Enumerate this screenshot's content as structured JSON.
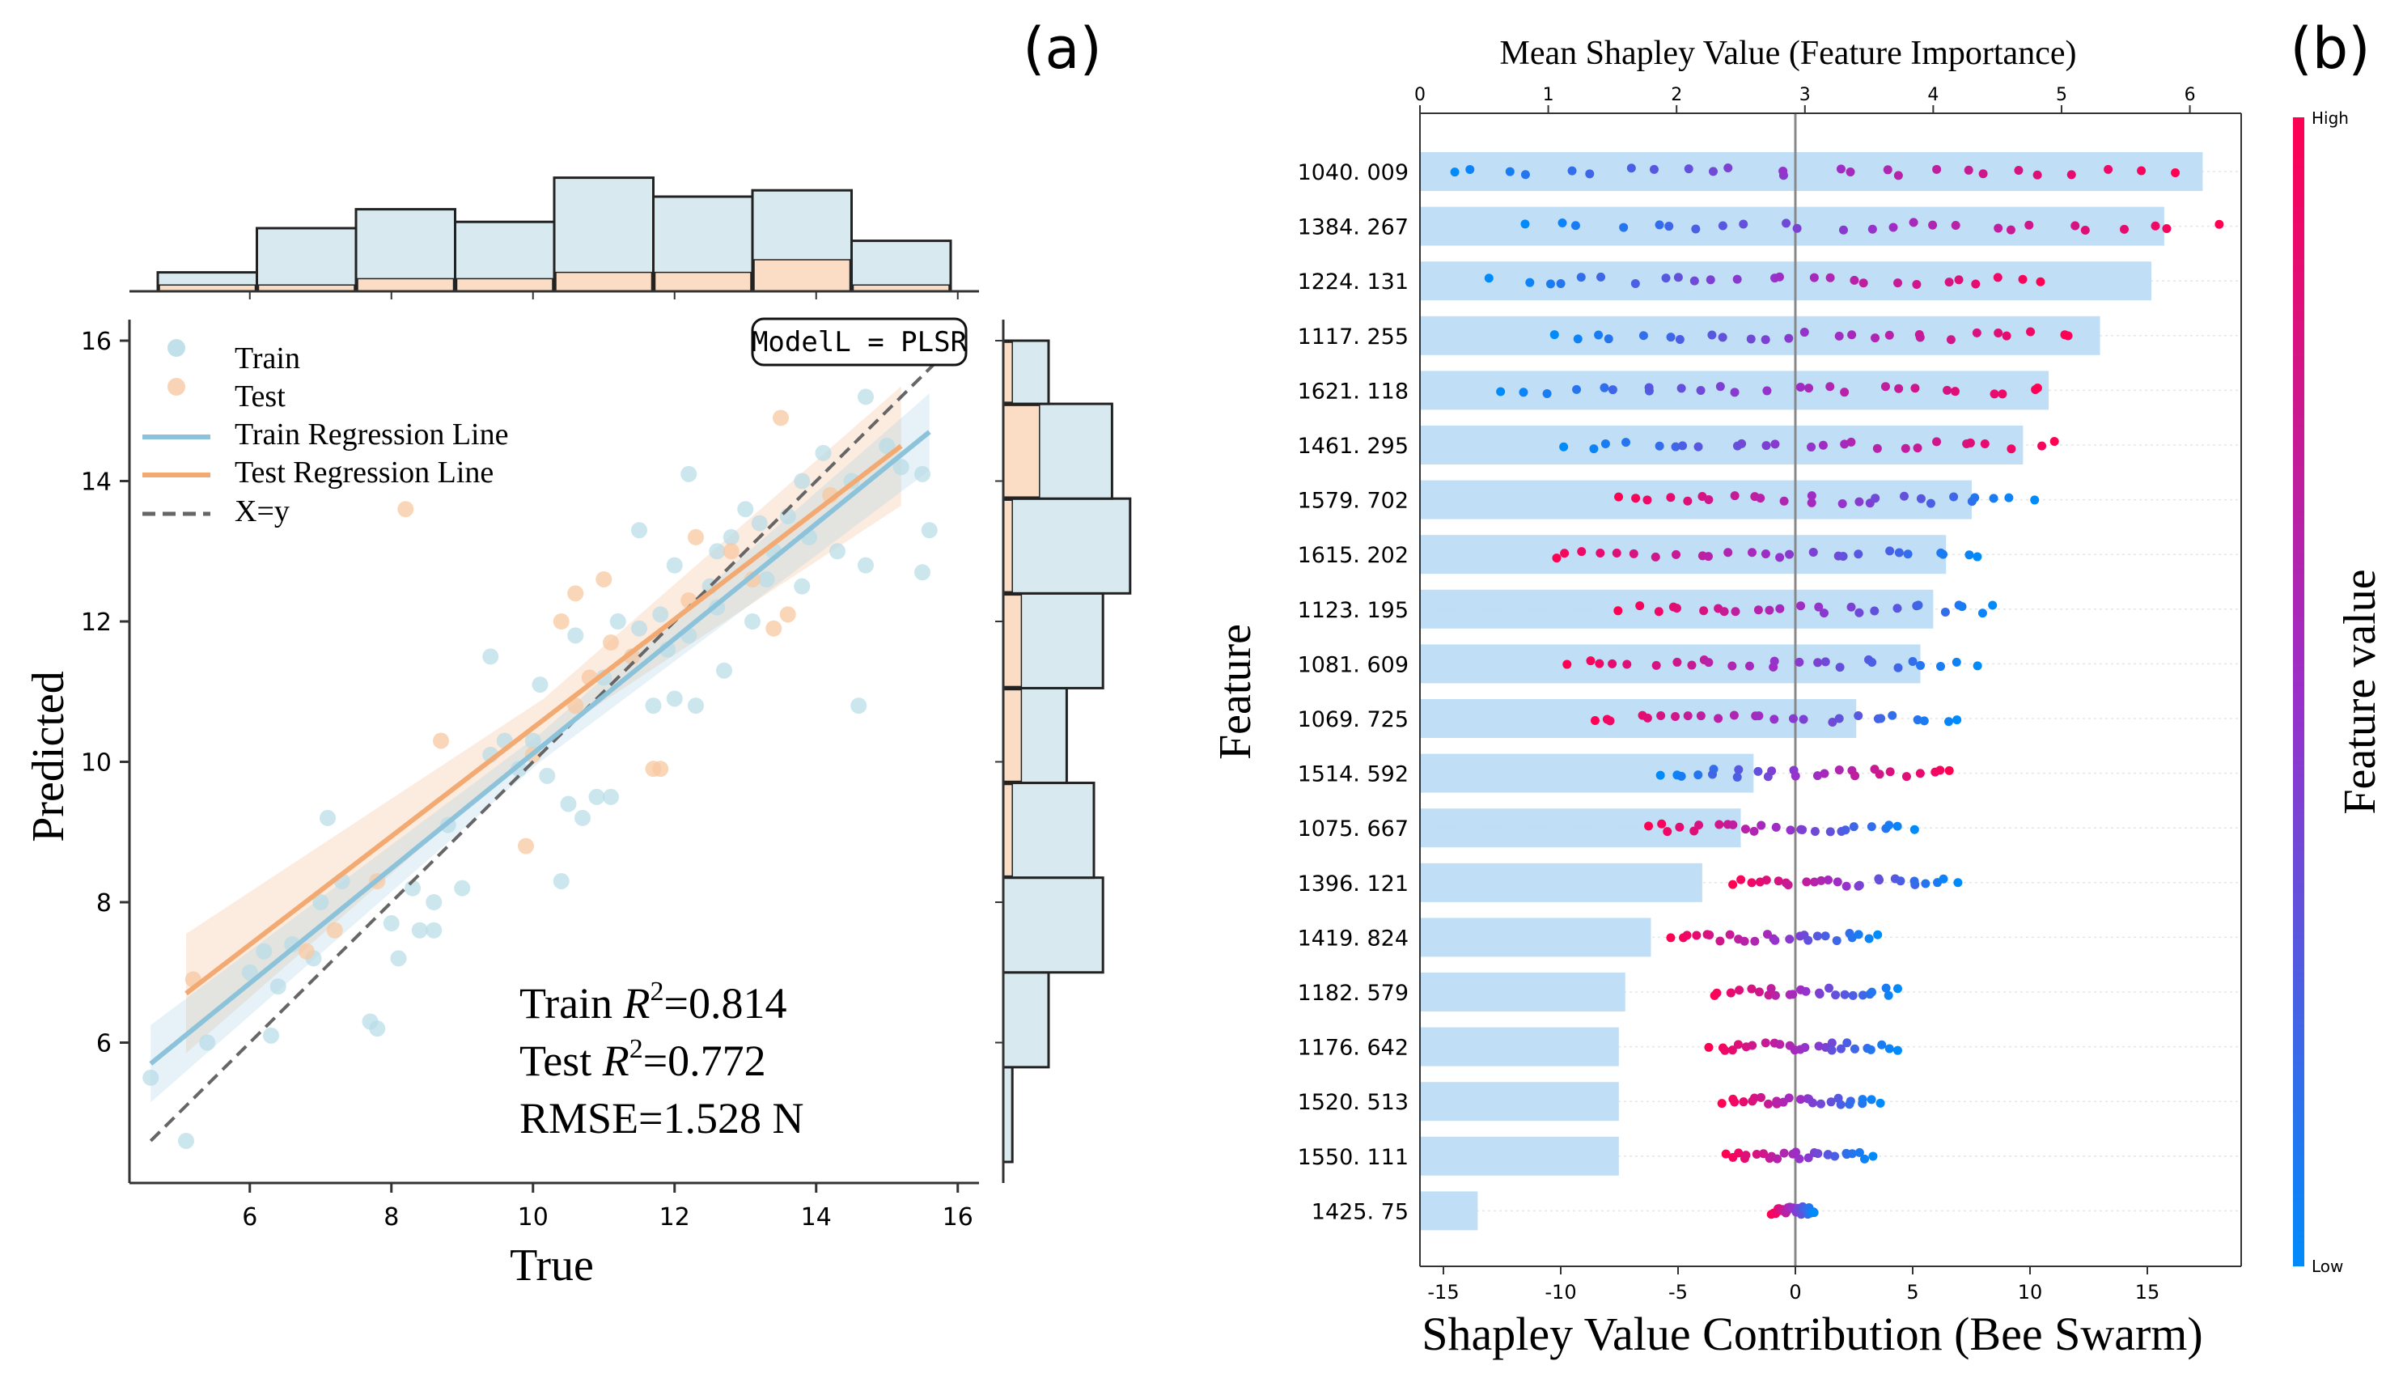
{
  "panel_a_label": "(a)",
  "panel_b_label": "(b)",
  "chart_data": [
    {
      "type": "scatter",
      "title": "",
      "xlabel": "True",
      "ylabel": "Predicted",
      "xlim": [
        4.3,
        16.3
      ],
      "ylim": [
        4.0,
        16.3
      ],
      "xticks": [
        6,
        8,
        10,
        12,
        14,
        16
      ],
      "yticks": [
        6,
        8,
        10,
        12,
        14,
        16
      ],
      "model_label": "ModelL = PLSR",
      "legend": [
        "Train",
        "Test",
        "Train Regression Line",
        "Test Regression Line",
        "X=y"
      ],
      "metrics": {
        "train_prefix": "Train ",
        "train_value": "=0.814",
        "test_prefix": "Test ",
        "test_value": "=0.772",
        "r_symbol": "R",
        "r_sup": "2",
        "rmse": "RMSE=1.528 N"
      },
      "colors": {
        "train": "#a9d3e2",
        "test": "#f7c49d",
        "train_line": "#8cc3da",
        "test_line": "#f3aa72",
        "diag": "#666666",
        "hist_train": "#d8eaf0",
        "hist_test": "#fbdcc4"
      },
      "train_line": {
        "x": [
          4.6,
          15.6
        ],
        "y": [
          5.7,
          14.7
        ]
      },
      "test_line": {
        "x": [
          5.1,
          15.2
        ],
        "y": [
          6.7,
          14.5
        ]
      },
      "diag_line": {
        "x": [
          4.6,
          15.7
        ],
        "y": [
          4.6,
          15.7
        ]
      },
      "series": [
        {
          "name": "Train",
          "points": [
            [
              4.6,
              5.5
            ],
            [
              5.1,
              4.6
            ],
            [
              5.4,
              6.0
            ],
            [
              6.3,
              6.1
            ],
            [
              6.0,
              7.0
            ],
            [
              6.2,
              7.3
            ],
            [
              6.4,
              6.8
            ],
            [
              6.6,
              7.4
            ],
            [
              6.9,
              7.2
            ],
            [
              7.0,
              8.0
            ],
            [
              7.3,
              8.3
            ],
            [
              7.1,
              9.2
            ],
            [
              7.7,
              6.3
            ],
            [
              7.8,
              6.2
            ],
            [
              8.0,
              7.7
            ],
            [
              8.1,
              7.2
            ],
            [
              8.4,
              7.6
            ],
            [
              8.6,
              7.6
            ],
            [
              8.6,
              8.0
            ],
            [
              8.3,
              8.2
            ],
            [
              9.0,
              8.2
            ],
            [
              8.8,
              9.1
            ],
            [
              9.4,
              10.1
            ],
            [
              9.6,
              10.3
            ],
            [
              9.8,
              9.9
            ],
            [
              10.0,
              10.3
            ],
            [
              10.2,
              9.8
            ],
            [
              10.4,
              8.3
            ],
            [
              10.5,
              9.4
            ],
            [
              10.7,
              9.2
            ],
            [
              10.9,
              9.5
            ],
            [
              11.1,
              9.5
            ],
            [
              10.1,
              11.1
            ],
            [
              10.6,
              11.8
            ],
            [
              11.0,
              11.2
            ],
            [
              11.2,
              12.0
            ],
            [
              11.5,
              11.9
            ],
            [
              11.8,
              12.1
            ],
            [
              11.4,
              11.5
            ],
            [
              11.9,
              11.6
            ],
            [
              12.0,
              10.9
            ],
            [
              12.3,
              10.8
            ],
            [
              12.2,
              11.8
            ],
            [
              12.5,
              12.5
            ],
            [
              12.6,
              12.2
            ],
            [
              12.0,
              12.8
            ],
            [
              12.2,
              14.1
            ],
            [
              12.6,
              13.0
            ],
            [
              12.8,
              13.2
            ],
            [
              13.0,
              13.6
            ],
            [
              13.2,
              13.4
            ],
            [
              13.3,
              12.6
            ],
            [
              13.4,
              13.0
            ],
            [
              13.6,
              13.5
            ],
            [
              13.8,
              14.0
            ],
            [
              13.9,
              13.2
            ],
            [
              14.1,
              14.4
            ],
            [
              14.3,
              13.0
            ],
            [
              14.5,
              14.0
            ],
            [
              14.7,
              12.8
            ],
            [
              14.6,
              10.8
            ],
            [
              15.0,
              14.5
            ],
            [
              15.2,
              14.2
            ],
            [
              15.5,
              12.7
            ],
            [
              15.6,
              13.3
            ],
            [
              15.5,
              14.1
            ],
            [
              14.7,
              15.2
            ],
            [
              11.5,
              13.3
            ],
            [
              13.1,
              12.0
            ],
            [
              12.7,
              11.3
            ],
            [
              9.4,
              11.5
            ],
            [
              11.7,
              10.8
            ],
            [
              13.8,
              12.5
            ]
          ]
        },
        {
          "name": "Test",
          "points": [
            [
              5.2,
              6.9
            ],
            [
              6.8,
              7.3
            ],
            [
              7.2,
              7.6
            ],
            [
              7.8,
              8.3
            ],
            [
              8.7,
              10.3
            ],
            [
              9.9,
              8.8
            ],
            [
              10.0,
              10.1
            ],
            [
              10.6,
              10.8
            ],
            [
              10.8,
              11.2
            ],
            [
              11.0,
              12.6
            ],
            [
              11.1,
              11.7
            ],
            [
              11.7,
              9.9
            ],
            [
              11.8,
              9.9
            ],
            [
              12.2,
              12.3
            ],
            [
              12.3,
              13.2
            ],
            [
              12.8,
              13.0
            ],
            [
              13.1,
              12.6
            ],
            [
              13.4,
              11.9
            ],
            [
              13.5,
              14.9
            ],
            [
              13.6,
              12.1
            ],
            [
              14.2,
              13.8
            ],
            [
              10.4,
              12.0
            ],
            [
              8.2,
              13.6
            ],
            [
              10.6,
              12.4
            ],
            [
              11.4,
              11.5
            ]
          ]
        }
      ],
      "top_hist": {
        "bin_edges": [
          4.7,
          6.1,
          7.5,
          8.9,
          10.3,
          11.7,
          13.1,
          14.5,
          15.9
        ],
        "train_counts": [
          3,
          10,
          13,
          11,
          18,
          15,
          16,
          8
        ],
        "test_counts": [
          1,
          1,
          2,
          2,
          3,
          3,
          5,
          1
        ]
      },
      "right_hist": {
        "bin_edges": [
          4.3,
          5.65,
          7.0,
          8.35,
          9.7,
          11.05,
          12.4,
          13.75,
          15.1,
          16.0
        ],
        "train_counts": [
          1,
          5,
          11,
          10,
          7,
          11,
          14,
          12,
          5
        ],
        "test_counts": [
          0,
          0,
          0,
          1,
          2,
          2,
          1,
          4,
          1
        ]
      }
    },
    {
      "type": "scatter",
      "subtype": "beeswarm_with_importance_bars",
      "ylabel": "Feature",
      "xlabel": "Shapley Value Contribution (Bee Swarm)",
      "top_xlabel": "Mean Shapley Value (Feature Importance)",
      "xlim": [
        -16,
        19
      ],
      "xticks": [
        -15,
        -10,
        -5,
        0,
        5,
        10,
        15
      ],
      "top_xlim": [
        0,
        6.4
      ],
      "top_xticks": [
        0,
        1,
        2,
        3,
        4,
        5,
        6
      ],
      "colorbar": {
        "label": "Feature value",
        "high": "High",
        "low": "Low",
        "colors": [
          "#008bfb",
          "#ff0052"
        ]
      },
      "features": [
        "1040. 009",
        "1384. 267",
        "1224. 131",
        "1117. 255",
        "1621. 118",
        "1461. 295",
        "1579. 702",
        "1615. 202",
        "1123. 195",
        "1081. 609",
        "1069. 725",
        "1514. 592",
        "1075. 667",
        "1396. 121",
        "1419. 824",
        "1182. 579",
        "1176. 642",
        "1520. 513",
        "1550. 111",
        "1425. 75"
      ],
      "importance": [
        6.1,
        5.8,
        5.7,
        5.3,
        4.9,
        4.7,
        4.3,
        4.1,
        4.0,
        3.9,
        3.4,
        2.6,
        2.5,
        2.2,
        1.8,
        1.6,
        1.55,
        1.55,
        1.55,
        0.45
      ],
      "swarm_ranges": [
        [
          -14.5,
          15.8
        ],
        [
          -11.0,
          17.5
        ],
        [
          -12.5,
          11.0
        ],
        [
          -10.2,
          12.0
        ],
        [
          -12.2,
          10.8
        ],
        [
          -9.5,
          11.0
        ],
        [
          -7.5,
          10.2
        ],
        [
          -10.2,
          8.2
        ],
        [
          -7.5,
          8.8
        ],
        [
          -9.5,
          7.5
        ],
        [
          -8.8,
          7.0
        ],
        [
          -5.8,
          6.8
        ],
        [
          -6.2,
          5.0
        ],
        [
          -2.8,
          6.8
        ],
        [
          -5.2,
          3.5
        ],
        [
          -3.5,
          4.3
        ],
        [
          -3.5,
          4.2
        ],
        [
          -3.0,
          3.5
        ],
        [
          -3.0,
          3.3
        ],
        [
          -1.0,
          0.8
        ]
      ]
    }
  ]
}
